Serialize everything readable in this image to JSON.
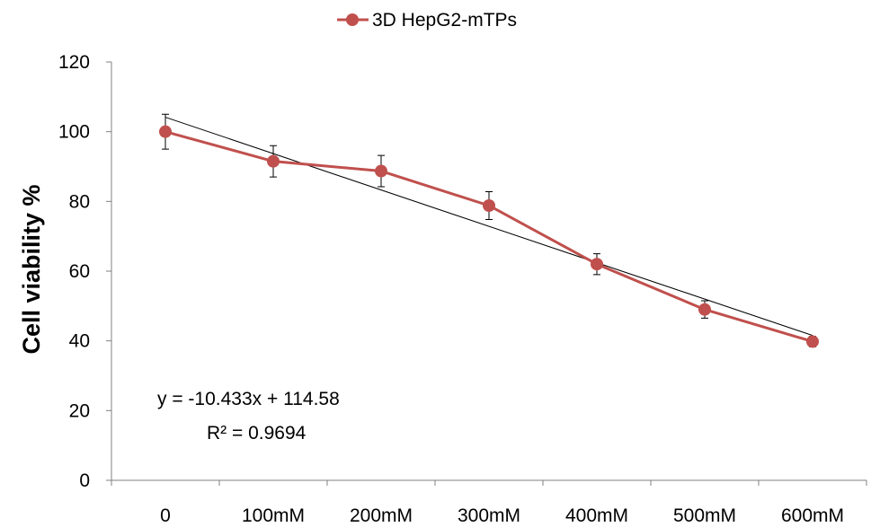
{
  "chart_data": {
    "type": "line",
    "categories": [
      "0",
      "100mM",
      "200mM",
      "300mM",
      "400mM",
      "500mM",
      "600mM"
    ],
    "series": [
      {
        "name": "3D HepG2-mTPs",
        "values": [
          100,
          91.5,
          88.7,
          78.8,
          62,
          49,
          39.8
        ],
        "error": [
          5,
          4.5,
          4.5,
          4,
          3,
          2.5,
          1.5
        ],
        "color": "#c0504d"
      }
    ],
    "trendline": {
      "type": "linear",
      "slope": -10.433,
      "intercept": 114.58,
      "color": "#000000",
      "equation": "y = -10.433x + 114.58",
      "r2": "R² = 0.9694"
    },
    "ylabel": "Cell viability %",
    "xlabel": "",
    "ylim": [
      0,
      120
    ],
    "yticks": [
      "0",
      "20",
      "40",
      "60",
      "80",
      "100",
      "120"
    ],
    "grid": false,
    "legend_position": "top-center"
  }
}
